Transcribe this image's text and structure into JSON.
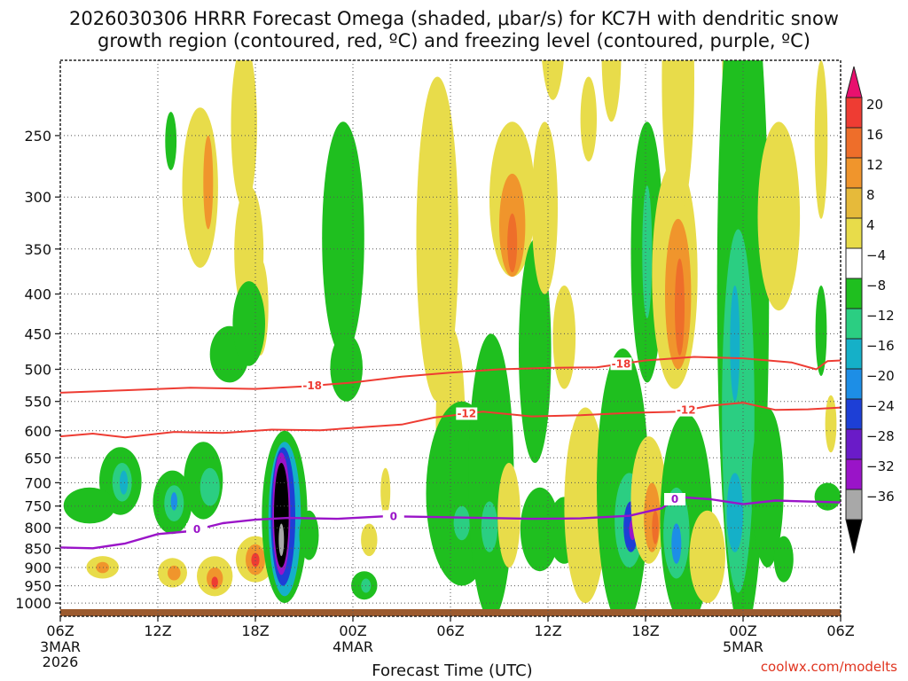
{
  "chart_data": {
    "type": "heatmap",
    "title_lines": [
      "2026030306 HRRR Forecast Omega (shaded, μbar/s) for KC7H with dendritic snow",
      "growth region (contoured, red, ºC) and freezing level (contoured, purple, ºC)"
    ],
    "xlabel": "Forecast Time (UTC)",
    "ylabel": "",
    "x_range_hours": [
      0,
      48
    ],
    "y_range_hPa": [
      1040,
      200
    ],
    "y_ticks": [
      250,
      300,
      350,
      400,
      450,
      500,
      550,
      600,
      650,
      700,
      750,
      800,
      850,
      900,
      950,
      1000
    ],
    "x_ticks": [
      {
        "hour": 0,
        "label": "06Z",
        "sub": [
          "3MAR",
          "2026"
        ]
      },
      {
        "hour": 6,
        "label": "12Z",
        "sub": []
      },
      {
        "hour": 12,
        "label": "18Z",
        "sub": []
      },
      {
        "hour": 18,
        "label": "00Z",
        "sub": [
          "4MAR"
        ]
      },
      {
        "hour": 24,
        "label": "06Z",
        "sub": []
      },
      {
        "hour": 30,
        "label": "12Z",
        "sub": []
      },
      {
        "hour": 36,
        "label": "18Z",
        "sub": []
      },
      {
        "hour": 42,
        "label": "00Z",
        "sub": [
          "5MAR"
        ]
      },
      {
        "hour": 48,
        "label": "06Z",
        "sub": []
      }
    ],
    "colorbar": {
      "labels": [
        "20",
        "16",
        "12",
        "8",
        "4",
        "−4",
        "−8",
        "−12",
        "−16",
        "−20",
        "−24",
        "−28",
        "−32",
        "−36"
      ],
      "colors": [
        "#e8106e",
        "#ee3c33",
        "#ee6e2a",
        "#f0952c",
        "#e6ba3a",
        "#e8dc4a",
        "#ffffff",
        "#1fbf1f",
        "#2bce82",
        "#15b0c8",
        "#1d8ee6",
        "#1d3fd6",
        "#6a1bc8",
        "#9a14c8",
        "#a8a8a8",
        "#000000"
      ]
    },
    "omega_cells": [
      {
        "hour": 6.8,
        "p": 255,
        "a": 0.35,
        "b": 22,
        "level": -6
      },
      {
        "hour": 8.6,
        "p": 300,
        "a": 1.1,
        "b": 70,
        "level": 5
      },
      {
        "hour": 9.1,
        "p": 290,
        "a": 0.3,
        "b": 40,
        "level": 9
      },
      {
        "hour": 11.3,
        "p": 250,
        "a": 0.8,
        "b": 60,
        "level": 5
      },
      {
        "hour": 11.6,
        "p": 360,
        "a": 0.9,
        "b": 70,
        "level": 5
      },
      {
        "hour": 12.3,
        "p": 420,
        "a": 0.5,
        "b": 60,
        "level": 6
      },
      {
        "hour": 10.4,
        "p": 480,
        "a": 1.2,
        "b": 40,
        "level": -6
      },
      {
        "hour": 11.6,
        "p": 440,
        "a": 1.0,
        "b": 55,
        "level": -6
      },
      {
        "hour": 3.7,
        "p": 700,
        "a": 1.3,
        "b": 70,
        "level": -6
      },
      {
        "hour": 3.8,
        "p": 700,
        "a": 0.6,
        "b": 40,
        "level": -10
      },
      {
        "hour": 3.9,
        "p": 700,
        "a": 0.25,
        "b": 25,
        "level": -14
      },
      {
        "hour": 1.8,
        "p": 750,
        "a": 1.6,
        "b": 40,
        "level": -6
      },
      {
        "hour": 2.6,
        "p": 900,
        "a": 1.0,
        "b": 30,
        "level": 5
      },
      {
        "hour": 2.6,
        "p": 900,
        "a": 0.4,
        "b": 15,
        "level": 9
      },
      {
        "hour": 6.9,
        "p": 745,
        "a": 1.2,
        "b": 70,
        "level": -6
      },
      {
        "hour": 7.0,
        "p": 745,
        "a": 0.6,
        "b": 40,
        "level": -10
      },
      {
        "hour": 7.0,
        "p": 740,
        "a": 0.2,
        "b": 20,
        "level": -18
      },
      {
        "hour": 8.8,
        "p": 700,
        "a": 1.2,
        "b": 80,
        "level": -6
      },
      {
        "hour": 9.2,
        "p": 710,
        "a": 0.6,
        "b": 40,
        "level": -10
      },
      {
        "hour": 6.9,
        "p": 915,
        "a": 0.9,
        "b": 40,
        "level": 5
      },
      {
        "hour": 7.0,
        "p": 915,
        "a": 0.4,
        "b": 20,
        "level": 9
      },
      {
        "hour": 9.5,
        "p": 925,
        "a": 1.1,
        "b": 55,
        "level": 5
      },
      {
        "hour": 9.5,
        "p": 930,
        "a": 0.5,
        "b": 30,
        "level": 10
      },
      {
        "hour": 9.5,
        "p": 940,
        "a": 0.2,
        "b": 15,
        "level": 17
      },
      {
        "hour": 12.0,
        "p": 880,
        "a": 1.2,
        "b": 60,
        "level": 5
      },
      {
        "hour": 12.0,
        "p": 880,
        "a": 0.6,
        "b": 40,
        "level": 9
      },
      {
        "hour": 12.0,
        "p": 880,
        "a": 0.25,
        "b": 18,
        "level": 17
      },
      {
        "hour": 14.0,
        "p": 900,
        "a": 0.6,
        "b": 60,
        "level": 5
      },
      {
        "hour": 13.8,
        "p": 800,
        "a": 1.4,
        "b": 200,
        "level": -6
      },
      {
        "hour": 13.8,
        "p": 800,
        "a": 1.0,
        "b": 180,
        "level": -12
      },
      {
        "hour": 13.7,
        "p": 790,
        "a": 0.75,
        "b": 160,
        "level": -22
      },
      {
        "hour": 13.6,
        "p": 780,
        "a": 0.55,
        "b": 140,
        "level": -30
      },
      {
        "hour": 13.6,
        "p": 780,
        "a": 0.45,
        "b": 120,
        "level": -40
      },
      {
        "hour": 13.6,
        "p": 830,
        "a": 0.15,
        "b": 40,
        "level": -33
      },
      {
        "hour": 15.3,
        "p": 820,
        "a": 0.6,
        "b": 60,
        "level": -6
      },
      {
        "hour": 17.4,
        "p": 360,
        "a": 1.3,
        "b": 120,
        "level": -6
      },
      {
        "hour": 17.6,
        "p": 500,
        "a": 1.0,
        "b": 50,
        "level": -6
      },
      {
        "hour": 19.0,
        "p": 830,
        "a": 0.5,
        "b": 40,
        "level": 5
      },
      {
        "hour": 18.7,
        "p": 950,
        "a": 0.8,
        "b": 40,
        "level": -6
      },
      {
        "hour": 18.8,
        "p": 950,
        "a": 0.3,
        "b": 20,
        "level": -10
      },
      {
        "hour": 20.0,
        "p": 720,
        "a": 0.3,
        "b": 50,
        "level": 5
      },
      {
        "hour": 23.2,
        "p": 380,
        "a": 1.3,
        "b": 170,
        "level": 5
      },
      {
        "hour": 24.0,
        "p": 610,
        "a": 0.9,
        "b": 170,
        "level": 5
      },
      {
        "hour": 24.7,
        "p": 750,
        "a": 2.2,
        "b": 200,
        "level": -6
      },
      {
        "hour": 24.7,
        "p": 790,
        "a": 0.5,
        "b": 40,
        "level": -10
      },
      {
        "hour": 26.5,
        "p": 750,
        "a": 1.4,
        "b": 300,
        "level": -6
      },
      {
        "hour": 26.4,
        "p": 800,
        "a": 0.5,
        "b": 60,
        "level": -10
      },
      {
        "hour": 27.8,
        "p": 310,
        "a": 1.4,
        "b": 70,
        "level": 5
      },
      {
        "hour": 27.8,
        "p": 330,
        "a": 0.8,
        "b": 50,
        "level": 9
      },
      {
        "hour": 27.8,
        "p": 345,
        "a": 0.3,
        "b": 30,
        "level": 12
      },
      {
        "hour": 27.6,
        "p": 780,
        "a": 0.7,
        "b": 120,
        "level": 5
      },
      {
        "hour": 29.2,
        "p": 500,
        "a": 1.0,
        "b": 160,
        "level": -6
      },
      {
        "hour": 29.8,
        "p": 320,
        "a": 0.8,
        "b": 80,
        "level": 5
      },
      {
        "hour": 30.3,
        "p": 180,
        "a": 0.8,
        "b": 45,
        "level": 5
      },
      {
        "hour": 31.0,
        "p": 460,
        "a": 0.7,
        "b": 70,
        "level": 5
      },
      {
        "hour": 29.5,
        "p": 810,
        "a": 1.2,
        "b": 100,
        "level": -6
      },
      {
        "hour": 31.0,
        "p": 810,
        "a": 1.0,
        "b": 80,
        "level": -6
      },
      {
        "hour": 31.5,
        "p": 780,
        "a": 0.4,
        "b": 30,
        "level": -10
      },
      {
        "hour": 32.3,
        "p": 780,
        "a": 1.3,
        "b": 220,
        "level": 5
      },
      {
        "hour": 34.6,
        "p": 770,
        "a": 1.6,
        "b": 300,
        "level": -6
      },
      {
        "hour": 35.0,
        "p": 790,
        "a": 0.9,
        "b": 110,
        "level": -10
      },
      {
        "hour": 35.1,
        "p": 800,
        "a": 0.45,
        "b": 60,
        "level": -22
      },
      {
        "hour": 35.2,
        "p": 805,
        "a": 0.2,
        "b": 25,
        "level": -30
      },
      {
        "hour": 33.9,
        "p": 200,
        "a": 0.6,
        "b": 40,
        "level": 5
      },
      {
        "hour": 32.5,
        "p": 240,
        "a": 0.5,
        "b": 30,
        "level": 5
      },
      {
        "hour": 36.1,
        "p": 380,
        "a": 1.0,
        "b": 140,
        "level": -6
      },
      {
        "hour": 36.1,
        "p": 360,
        "a": 0.3,
        "b": 70,
        "level": -10
      },
      {
        "hour": 36.2,
        "p": 750,
        "a": 1.1,
        "b": 140,
        "level": 5
      },
      {
        "hour": 36.4,
        "p": 780,
        "a": 0.5,
        "b": 80,
        "level": 9
      },
      {
        "hour": 36.6,
        "p": 800,
        "a": 0.2,
        "b": 40,
        "level": 13
      },
      {
        "hour": 37.8,
        "p": 400,
        "a": 1.4,
        "b": 130,
        "level": 5
      },
      {
        "hour": 38.0,
        "p": 410,
        "a": 0.8,
        "b": 90,
        "level": 9
      },
      {
        "hour": 38.1,
        "p": 420,
        "a": 0.3,
        "b": 60,
        "level": 13
      },
      {
        "hour": 38.0,
        "p": 230,
        "a": 1.0,
        "b": 90,
        "level": 5
      },
      {
        "hour": 38.5,
        "p": 820,
        "a": 1.6,
        "b": 250,
        "level": -6
      },
      {
        "hour": 37.9,
        "p": 820,
        "a": 0.8,
        "b": 110,
        "level": -10
      },
      {
        "hour": 37.9,
        "p": 840,
        "a": 0.3,
        "b": 50,
        "level": -17
      },
      {
        "hour": 39.8,
        "p": 880,
        "a": 1.1,
        "b": 120,
        "level": 5
      },
      {
        "hour": 41.3,
        "p": 200,
        "a": 0.6,
        "b": 60,
        "level": 5
      },
      {
        "hour": 42.0,
        "p": 620,
        "a": 1.6,
        "b": 480,
        "level": -6
      },
      {
        "hour": 41.7,
        "p": 650,
        "a": 1.0,
        "b": 320,
        "level": -10
      },
      {
        "hour": 41.5,
        "p": 470,
        "a": 0.3,
        "b": 80,
        "level": -14
      },
      {
        "hour": 41.5,
        "p": 770,
        "a": 0.5,
        "b": 90,
        "level": -14
      },
      {
        "hour": 43.5,
        "p": 730,
        "a": 1.0,
        "b": 170,
        "level": -6
      },
      {
        "hour": 44.2,
        "p": 330,
        "a": 1.3,
        "b": 90,
        "level": 5
      },
      {
        "hour": 46.8,
        "p": 260,
        "a": 0.4,
        "b": 60,
        "level": 5
      },
      {
        "hour": 46.8,
        "p": 450,
        "a": 0.35,
        "b": 60,
        "level": -6
      },
      {
        "hour": 47.2,
        "p": 730,
        "a": 0.8,
        "b": 30,
        "level": -6
      },
      {
        "hour": 47.4,
        "p": 590,
        "a": 0.35,
        "b": 50,
        "level": 5
      },
      {
        "hour": 44.5,
        "p": 880,
        "a": 0.6,
        "b": 60,
        "level": -6
      }
    ],
    "dgz_minus18_isotherm": {
      "color": "#ee3c33",
      "label": "-18",
      "label_hours": [
        15.5,
        34.5
      ],
      "points": [
        [
          0,
          536
        ],
        [
          4,
          532
        ],
        [
          8,
          528
        ],
        [
          12,
          530
        ],
        [
          15,
          526
        ],
        [
          18,
          520
        ],
        [
          21,
          511
        ],
        [
          24,
          505
        ],
        [
          27,
          500
        ],
        [
          30,
          498
        ],
        [
          33,
          497
        ],
        [
          36,
          487
        ],
        [
          39,
          482
        ],
        [
          42,
          484
        ],
        [
          45,
          490
        ],
        [
          46.5,
          500
        ],
        [
          47.2,
          488
        ],
        [
          48,
          487
        ]
      ]
    },
    "dgz_minus12_isotherm": {
      "color": "#ee3c33",
      "label": "-12",
      "label_hours": [
        25.0,
        38.5
      ],
      "points": [
        [
          0,
          610
        ],
        [
          2,
          605
        ],
        [
          4,
          612
        ],
        [
          7,
          602
        ],
        [
          10,
          604
        ],
        [
          13,
          598
        ],
        [
          16,
          599
        ],
        [
          19,
          593
        ],
        [
          21,
          589
        ],
        [
          23,
          577
        ],
        [
          26,
          567
        ],
        [
          29,
          575
        ],
        [
          32,
          573
        ],
        [
          35,
          569
        ],
        [
          38,
          567
        ],
        [
          40,
          557
        ],
        [
          42,
          552
        ],
        [
          44,
          564
        ],
        [
          46,
          563
        ],
        [
          48,
          560
        ]
      ]
    },
    "freezing_level": {
      "color": "#9a14c8",
      "label": "0",
      "label_hours": [
        8.4,
        20.5,
        37.8
      ],
      "points": [
        [
          0,
          848
        ],
        [
          2,
          850
        ],
        [
          4,
          838
        ],
        [
          6,
          815
        ],
        [
          8,
          808
        ],
        [
          10,
          789
        ],
        [
          12,
          781
        ],
        [
          14,
          777
        ],
        [
          17,
          779
        ],
        [
          20,
          773
        ],
        [
          23,
          775
        ],
        [
          26,
          777
        ],
        [
          29,
          779
        ],
        [
          32,
          778
        ],
        [
          35,
          772
        ],
        [
          37,
          755
        ],
        [
          38,
          730
        ],
        [
          40,
          735
        ],
        [
          42,
          746
        ],
        [
          44,
          738
        ],
        [
          46,
          740
        ],
        [
          48,
          742
        ]
      ]
    }
  },
  "credit": "coolwx.com/modelts"
}
